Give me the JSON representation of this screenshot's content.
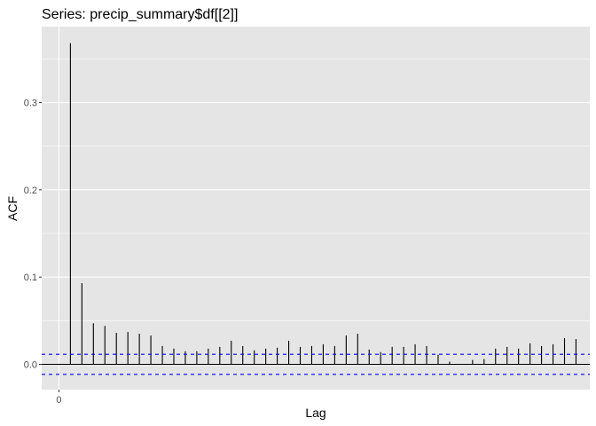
{
  "chart_data": {
    "type": "bar",
    "title": "Series: precip_summary$df[[2]]",
    "xlabel": "Lag",
    "ylabel": "ACF",
    "x_ticks": [
      0
    ],
    "y_ticks": [
      0.0,
      0.1,
      0.2,
      0.3
    ],
    "y_tick_labels": [
      "0.0",
      "0.1",
      "0.2",
      "0.3"
    ],
    "xlim": [
      -1.5,
      46.2
    ],
    "ylim": [
      -0.029,
      0.387
    ],
    "lags": [
      1,
      2,
      3,
      4,
      5,
      6,
      7,
      8,
      9,
      10,
      11,
      12,
      13,
      14,
      15,
      16,
      17,
      18,
      19,
      20,
      21,
      22,
      23,
      24,
      25,
      26,
      27,
      28,
      29,
      30,
      31,
      32,
      33,
      34,
      35,
      36,
      37,
      38,
      39,
      40,
      41,
      42,
      43,
      44,
      45
    ],
    "acf": [
      0.368,
      0.093,
      0.047,
      0.044,
      0.036,
      0.037,
      0.035,
      0.033,
      0.021,
      0.018,
      0.015,
      0.015,
      0.018,
      0.02,
      0.027,
      0.021,
      0.016,
      0.018,
      0.019,
      0.027,
      0.02,
      0.021,
      0.023,
      0.021,
      0.033,
      0.035,
      0.017,
      0.014,
      0.02,
      0.02,
      0.023,
      0.021,
      0.011,
      0.003,
      0.0,
      0.005,
      0.006,
      0.018,
      0.02,
      0.018,
      0.024,
      0.021,
      0.023,
      0.03,
      0.029
    ],
    "conf_limit": 0.0115,
    "grid": true,
    "colors": {
      "panel_bg": "#e5e5e5",
      "grid": "#ffffff",
      "bars": "#000000",
      "conf_lines": "#0000ff",
      "zero_line": "#000000"
    }
  }
}
